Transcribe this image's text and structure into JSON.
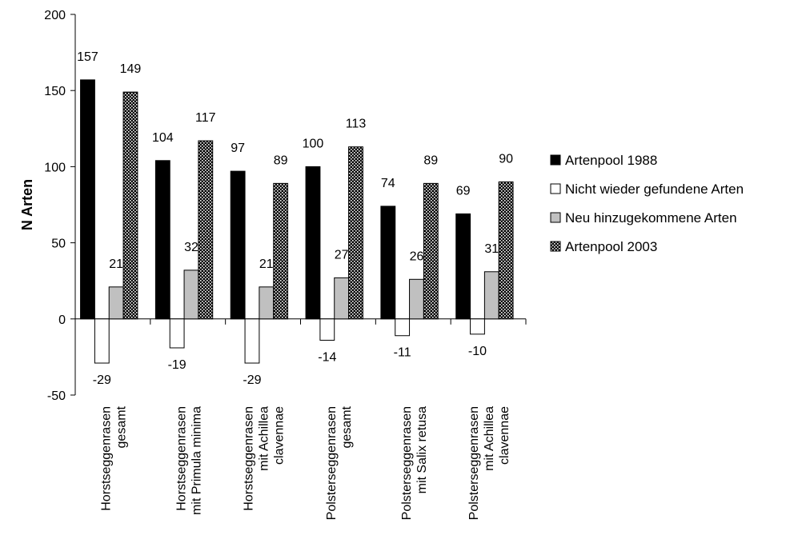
{
  "chart_data": {
    "type": "bar",
    "ylabel": "N Arten",
    "ylim": [
      -50,
      200
    ],
    "yticks": [
      200,
      150,
      100,
      50,
      0,
      -50
    ],
    "grid": false,
    "legend_position": "right",
    "categories": [
      [
        "Horstseggenrasen",
        "gesamt"
      ],
      [
        "Horstseggenrasen",
        "mit Primula minima"
      ],
      [
        "Horstseggenrasen",
        "mit Achillea",
        "clavennae"
      ],
      [
        "Polsterseggenrasen",
        "gesamt"
      ],
      [
        "Polsterseggenrasen",
        "mit Salix retusa"
      ],
      [
        "Polsterseggenrasen",
        "mit Achillea",
        "clavennae"
      ]
    ],
    "series": [
      {
        "name": "Artenpool 1988",
        "fill": "#000000",
        "pattern": "solid",
        "values": [
          157,
          104,
          97,
          100,
          74,
          69
        ]
      },
      {
        "name": "Nicht wieder gefundene Arten",
        "fill": "#ffffff",
        "pattern": "solid",
        "values": [
          -29,
          -19,
          -29,
          -14,
          -11,
          -10
        ]
      },
      {
        "name": "Neu hinzugekommene Arten",
        "fill": "#c0c0c0",
        "pattern": "solid",
        "values": [
          21,
          32,
          21,
          27,
          26,
          31
        ]
      },
      {
        "name": "Artenpool 2003",
        "fill": "#000000",
        "pattern": "dots",
        "values": [
          149,
          117,
          89,
          113,
          89,
          90
        ]
      }
    ]
  }
}
